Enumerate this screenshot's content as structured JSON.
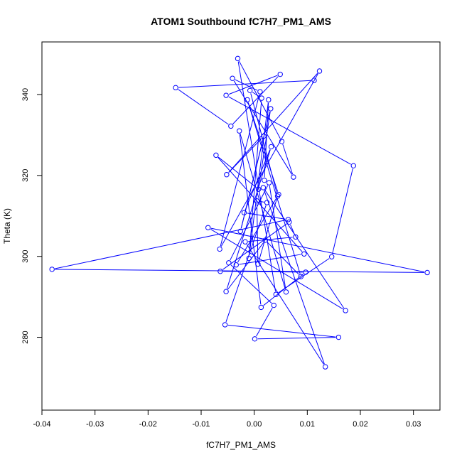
{
  "chart_data": {
    "type": "line",
    "title": "ATOM1 Southbound fC7H7_PM1_AMS",
    "xlabel": "fC7H7_PM1_AMS",
    "ylabel": "Theta (K)",
    "xlim": [
      -0.04,
      0.035
    ],
    "ylim": [
      262,
      353
    ],
    "xticks": [
      -0.04,
      -0.03,
      -0.02,
      -0.01,
      0.0,
      0.01,
      0.02,
      0.03
    ],
    "xtick_labels": [
      "-0.04",
      "-0.03",
      "-0.02",
      "-0.01",
      "0.00",
      "0.01",
      "0.02",
      "0.03"
    ],
    "yticks": [
      280,
      300,
      320,
      340
    ],
    "ytick_labels": [
      "280",
      "300",
      "320",
      "340"
    ],
    "grid": false,
    "legend": "none",
    "markers": "open circles",
    "color": "#0000ff",
    "series": [
      {
        "x": [
          0.0113,
          -0.0148,
          -0.0044,
          0.0049,
          -0.0053,
          0.0187,
          0.0146,
          0.0041,
          -0.0031,
          0.0052,
          0.0074,
          -0.0041,
          0.0011,
          -0.0065,
          0.0123,
          -0.0052,
          0.0018,
          -0.0026,
          0.0031,
          0.0008,
          -0.0072,
          0.0094,
          -0.0034,
          0.0046,
          -0.0013,
          0.0088,
          0.0021,
          -0.0053,
          0.0032,
          -0.0019,
          0.0064,
          -0.0381,
          0.0326,
          -0.0087,
          0.0172,
          0.0017,
          0.0134,
          -0.0017,
          0.0078,
          0.0066,
          -0.0064,
          0.0097,
          0.0013,
          -0.0028,
          0.006,
          0.0028,
          -0.0048,
          0.0037,
          0.0001,
          0.0159,
          -0.0055,
          0.0024,
          0.0005,
          0.0007,
          0.0044,
          -0.0008,
          0.0014,
          -0.001,
          0.0027,
          0.0019
        ],
        "y": [
          343.5,
          341.7,
          332.2,
          345.0,
          339.8,
          322.4,
          299.9,
          290.6,
          348.9,
          328.4,
          319.6,
          344.0,
          340.7,
          301.8,
          345.8,
          320.2,
          329.7,
          306.2,
          336.5,
          316.6,
          325.0,
          300.6,
          297.9,
          315.3,
          338.7,
          295.0,
          304.0,
          291.3,
          327.1,
          310.8,
          309.1,
          296.8,
          296.0,
          307.1,
          286.6,
          317.0,
          272.7,
          303.6,
          304.8,
          308.5,
          296.3,
          296.1,
          287.4,
          331.0,
          291.2,
          318.2,
          298.4,
          287.9,
          279.6,
          280.0,
          283.1,
          313.3,
          313.7,
          298.1,
          314.9,
          341.0,
          339.1,
          299.5,
          338.7,
          318.8
        ]
      }
    ]
  }
}
